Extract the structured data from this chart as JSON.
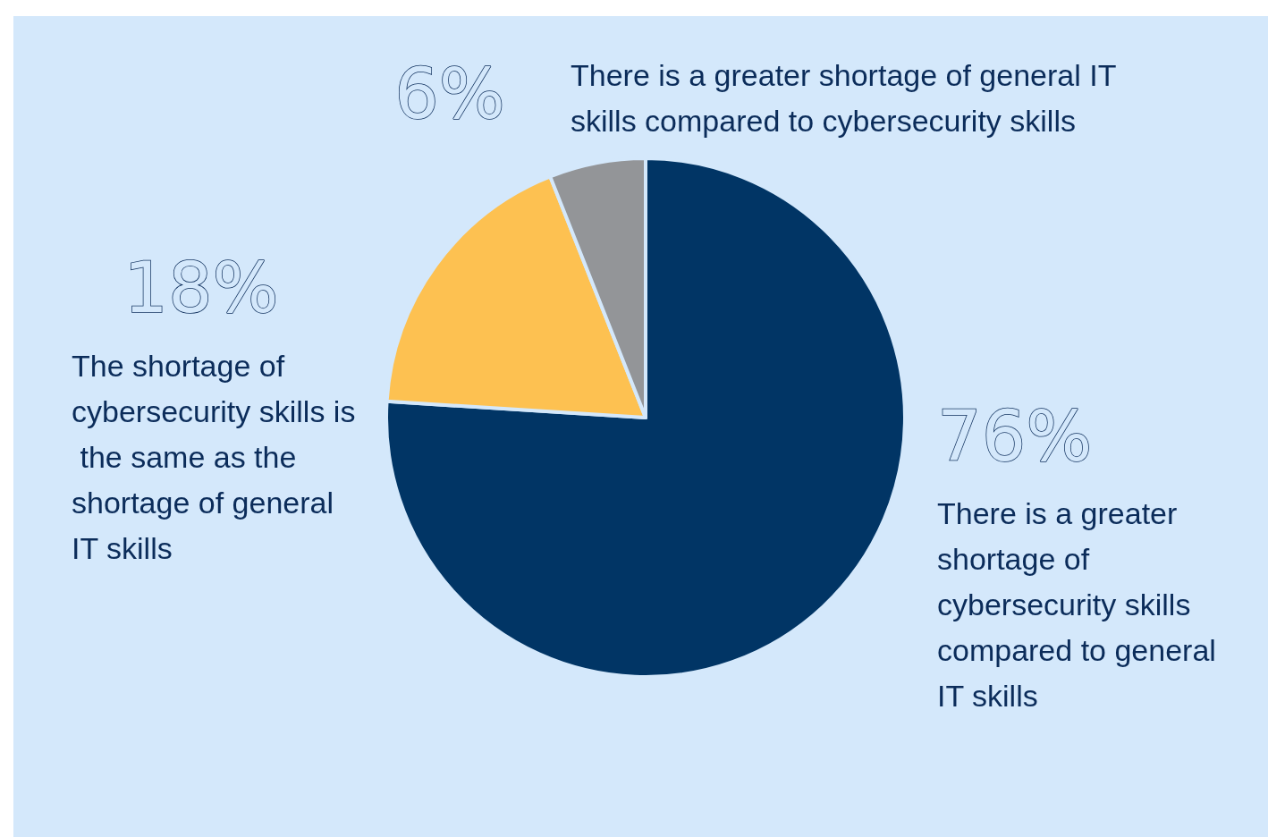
{
  "chart_data": {
    "type": "pie",
    "categories": [
      "There is a greater shortage of cybersecurity skills compared to general IT skills",
      "The shortage of cybersecurity skills is the same as the shortage of general IT skills",
      "There is a greater shortage of general IT skills compared to cybersecurity skills"
    ],
    "values": [
      76,
      18,
      6
    ],
    "colors": [
      "#013565",
      "#fdc151",
      "#939598"
    ],
    "value_labels": [
      "76%",
      "18%",
      "6%"
    ],
    "legend": false
  }
}
